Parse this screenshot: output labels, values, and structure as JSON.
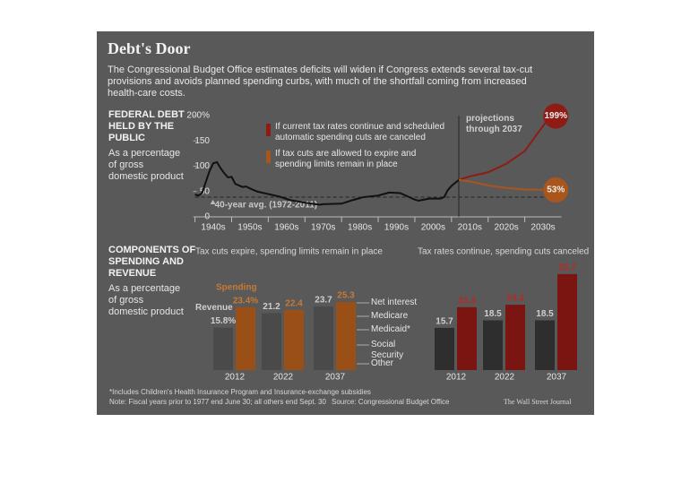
{
  "header": {
    "title": "Debt's Door",
    "subtitle": "The Congressional Budget Office estimates deficits will widen if Congress extends several tax-cut provisions and avoids planned spending curbs, with much of the shortfall coming from increased health-care costs."
  },
  "chart_data": [
    {
      "type": "line",
      "title": "FEDERAL DEBT HELD BY THE PUBLIC",
      "subtitle": "As a percentage of gross domestic product",
      "xlim": [
        1940,
        2040
      ],
      "ylim": [
        0,
        200
      ],
      "yticks": [
        0,
        50,
        100,
        150,
        {
          "value": 200,
          "label": "200%"
        }
      ],
      "xticks": [
        {
          "value": 1945,
          "label": "1940s"
        },
        {
          "value": 1955,
          "label": "1950s"
        },
        {
          "value": 1965,
          "label": "1960s"
        },
        {
          "value": 1975,
          "label": "1970s"
        },
        {
          "value": 1985,
          "label": "1980s"
        },
        {
          "value": 1995,
          "label": "1990s"
        },
        {
          "value": 2005,
          "label": "2000s"
        },
        {
          "value": 2015,
          "label": "2010s"
        },
        {
          "value": 2025,
          "label": "2020s"
        },
        {
          "value": 2035,
          "label": "2030s"
        }
      ],
      "series": [
        {
          "color": "#111111",
          "x": [
            1940,
            1941,
            1942,
            1943,
            1944,
            1945,
            1946,
            1947,
            1948,
            1949,
            1950,
            1951,
            1952,
            1953,
            1954,
            1955,
            1957,
            1960,
            1963,
            1966,
            1970,
            1974,
            1975,
            1980,
            1983,
            1986,
            1990,
            1993,
            1996,
            2000,
            2001,
            2004,
            2007,
            2008,
            2009,
            2010,
            2011,
            2012
          ],
          "values": [
            44,
            42,
            48,
            70,
            91,
            106,
            108,
            96,
            86,
            78,
            79,
            65,
            62,
            59,
            60,
            56,
            50,
            45,
            40,
            33,
            28,
            24,
            25,
            26,
            33,
            39,
            42,
            48,
            47,
            34,
            32,
            36,
            36,
            39,
            53,
            61,
            67,
            73
          ]
        },
        {
          "name": "If current tax rates continue and scheduled automatic spending cuts are canceled",
          "color": "#8e1b14",
          "x": [
            2012,
            2015,
            2020,
            2025,
            2030,
            2033,
            2037
          ],
          "values": [
            73,
            80,
            88,
            105,
            130,
            160,
            199
          ],
          "end_label": "199%"
        },
        {
          "name": "If tax cuts are allowed to expire and spending limits remain in place",
          "color": "#a8561b",
          "x": [
            2012,
            2015,
            2020,
            2025,
            2030,
            2037
          ],
          "values": [
            73,
            70,
            62,
            57,
            54,
            53
          ],
          "end_label": "53%"
        }
      ],
      "average": {
        "label": "40-year avg. (1972-2011)",
        "value": 39
      },
      "projection": {
        "label": "projections through 2037",
        "x": 2012
      }
    },
    {
      "type": "bar",
      "section_title": "COMPONENTS OF SPENDING AND REVENUE",
      "section_subtitle": "As a percentage of gross domestic product",
      "title": "Tax cuts expire, spending limits remain in place",
      "categories": [
        "2012",
        "2022",
        "2037"
      ],
      "ylim": [
        0,
        40
      ],
      "series": [
        {
          "name": "Revenue",
          "color": "#4a4a4a",
          "values": [
            15.8,
            21.2,
            23.7
          ],
          "value_labels": [
            "15.8%",
            "21.2",
            "23.7"
          ]
        },
        {
          "name": "Spending",
          "color": "#9a4f17",
          "values": [
            23.4,
            22.4,
            25.3
          ],
          "value_labels": [
            "23.4%",
            "22.4",
            "25.3"
          ]
        }
      ],
      "components": [
        "Net interest",
        "Medicare",
        "Medicaid*",
        "Social Security",
        "Other"
      ]
    },
    {
      "type": "bar",
      "title": "Tax rates continue, spending cuts canceled",
      "categories": [
        "2012",
        "2022",
        "2037"
      ],
      "ylim": [
        0,
        40
      ],
      "series": [
        {
          "color": "#2e2e2e",
          "values": [
            15.7,
            18.5,
            18.5
          ]
        },
        {
          "color": "#7a1511",
          "values": [
            23.4,
            24.3,
            35.7
          ]
        }
      ]
    }
  ],
  "footer": {
    "footnote": "*Includes Children's Health Insurance Program and Insurance-exchange subsidies",
    "note": "Note: Fiscal years prior to 1977 end June 30; all others end Sept. 30",
    "source": "Source: Congressional Budget Office",
    "credit": "The Wall Street Journal"
  }
}
